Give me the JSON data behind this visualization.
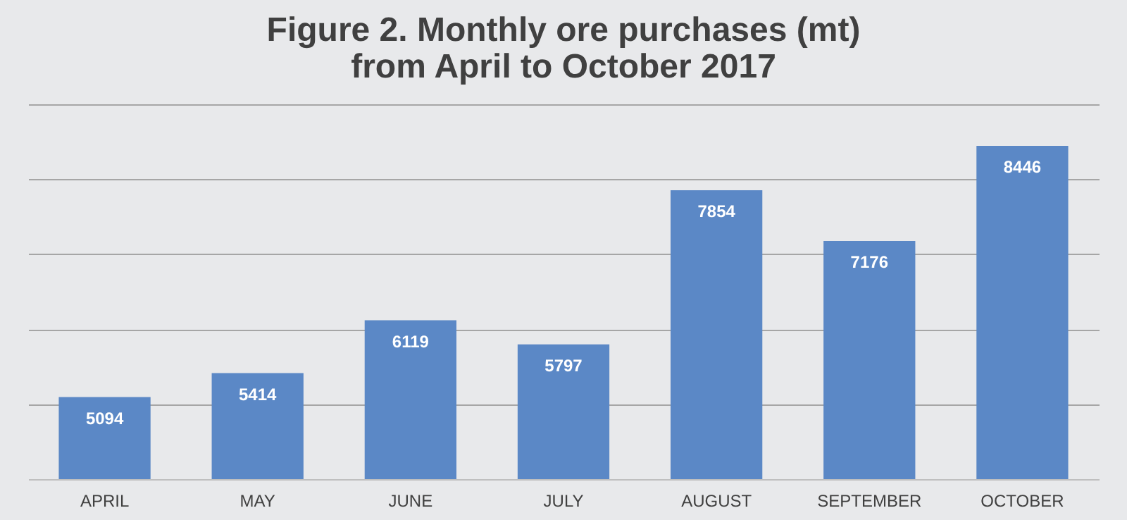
{
  "chart_data": {
    "type": "bar",
    "title": "Figure 2. Monthly ore purchases (mt) from April to October 2017",
    "categories": [
      "APRIL",
      "MAY",
      "JUNE",
      "JULY",
      "AUGUST",
      "SEPTEMBER",
      "OCTOBER"
    ],
    "values": [
      5094,
      5414,
      6119,
      5797,
      7854,
      7176,
      8446
    ],
    "color": "#5b88c6",
    "ylim": [
      4000,
      9000
    ],
    "yticks": [
      {
        "value": 4000,
        "label": null
      },
      {
        "value": 5000,
        "label": null
      },
      {
        "value": 6000,
        "label": null
      },
      {
        "value": 7000,
        "label": null
      },
      {
        "value": 8000,
        "label": null
      },
      {
        "value": 9000,
        "label": null
      }
    ],
    "tick_labels": "x",
    "grid": true,
    "data_labels": true
  }
}
